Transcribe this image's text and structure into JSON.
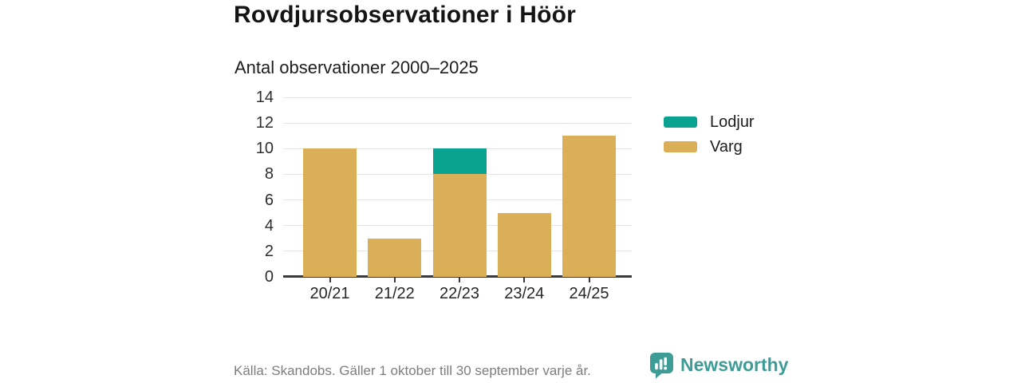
{
  "header": {
    "title": "Rovdjursobservationer i Höör",
    "subtitle": "Antal observationer 2000–2025"
  },
  "chart_data": {
    "type": "bar",
    "stacked": true,
    "title": "Rovdjursobservationer i Höör",
    "subtitle": "Antal observationer 2000–2025",
    "categories": [
      "20/21",
      "21/22",
      "22/23",
      "23/24",
      "24/25"
    ],
    "series": [
      {
        "name": "Varg",
        "color": "#dbae58",
        "values": [
          10,
          3,
          8,
          5,
          11
        ]
      },
      {
        "name": "Lodjur",
        "color": "#0aa291",
        "values": [
          0,
          0,
          2,
          0,
          0
        ]
      }
    ],
    "totals": [
      10,
      3,
      10,
      5,
      11
    ],
    "xlabel": "",
    "ylabel": "",
    "ylim": [
      0,
      14
    ],
    "yticks": [
      0,
      2,
      4,
      6,
      8,
      10,
      12,
      14
    ],
    "grid": true,
    "legend_position": "right"
  },
  "legend": {
    "items": [
      {
        "label": "Lodjur",
        "color": "#0aa291"
      },
      {
        "label": "Varg",
        "color": "#dbae58"
      }
    ]
  },
  "footer": {
    "source": "Källa: Skandobs. Gäller 1 oktober till 30 september varje år.",
    "brand": "Newsworthy"
  },
  "colors": {
    "varg": "#dbae58",
    "lodjur": "#0aa291",
    "brand_teal": "#3d9d96",
    "axis": "#3a3a3a",
    "gridline": "#e3e3e3",
    "source_text": "#7d7d7d"
  }
}
